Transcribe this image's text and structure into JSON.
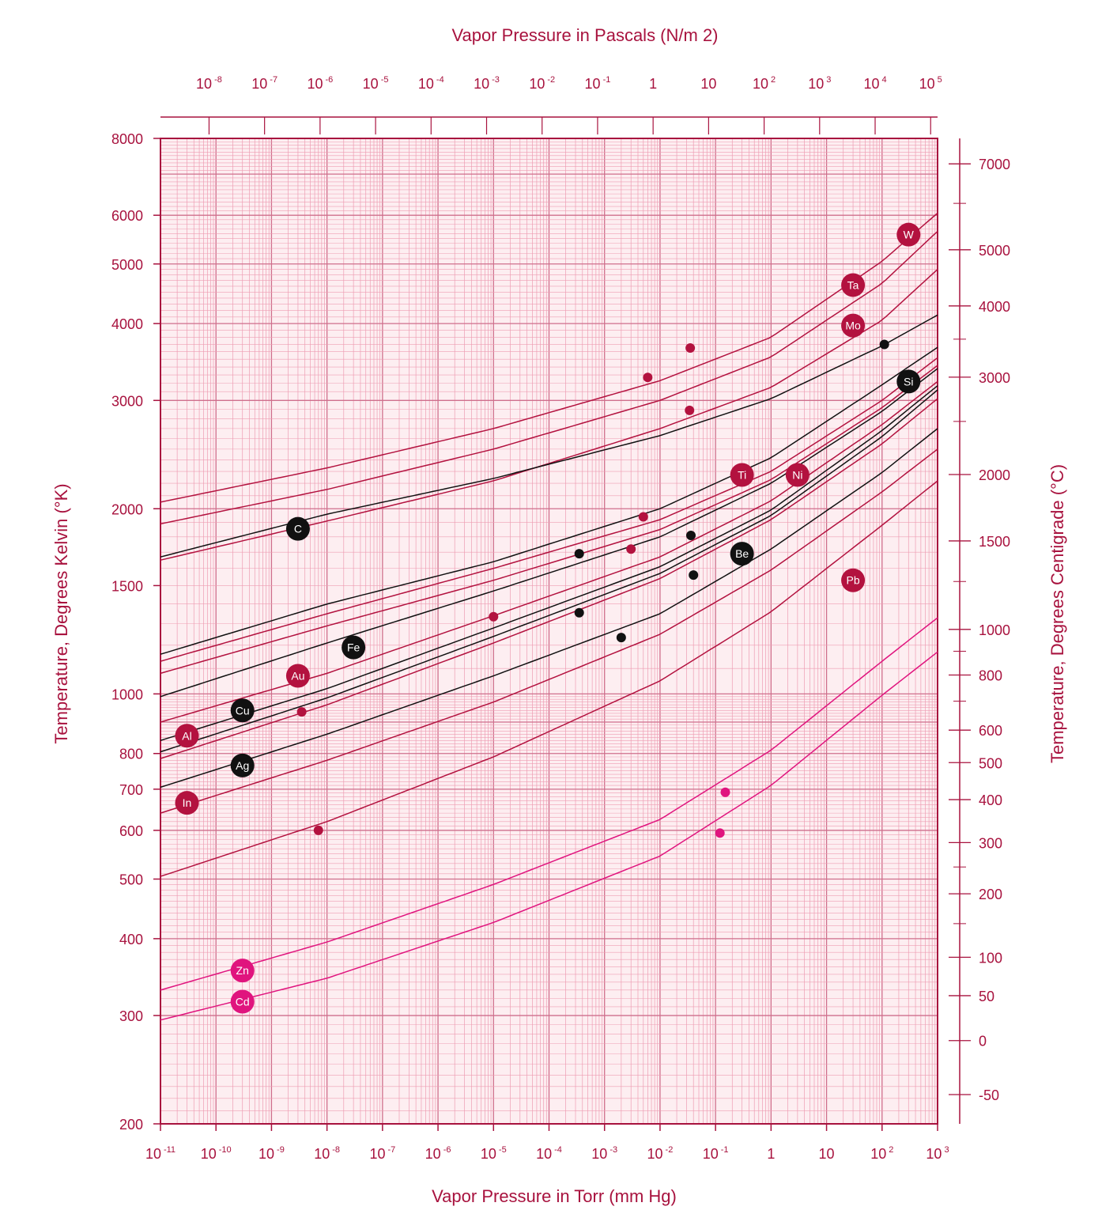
{
  "chart_data": {
    "type": "line",
    "title": "",
    "xlabel": "Vapor Pressure in Torr (mm Hg)",
    "x2label": "Vapor Pressure in Pascals (N/m 2)",
    "ylabel": "Temperature, Degrees Kelvin (°K)",
    "y2label": "Temperature, Degrees Centigrade (°C)",
    "x_scale": "log",
    "y_scale": "log",
    "xlim": [
      1e-11,
      1000
    ],
    "ylim": [
      200,
      8000
    ],
    "grid": true,
    "colors": {
      "primary": "#a8123e",
      "metal": "#b3123f",
      "black": "#111111",
      "magenta": "#e0147e",
      "grid_minor": "#ee9db3",
      "grid_major": "#cf6f8c",
      "plot_bg": "#fdeef1"
    },
    "x_ticks_torr": [
      {
        "base": "10",
        "exp": "-11"
      },
      {
        "base": "10",
        "exp": "-10"
      },
      {
        "base": "10",
        "exp": "-9"
      },
      {
        "base": "10",
        "exp": "-8"
      },
      {
        "base": "10",
        "exp": "-7"
      },
      {
        "base": "10",
        "exp": "-6"
      },
      {
        "base": "10",
        "exp": "-5"
      },
      {
        "base": "10",
        "exp": "-4"
      },
      {
        "base": "10",
        "exp": "-3"
      },
      {
        "base": "10",
        "exp": "-2"
      },
      {
        "base": "10",
        "exp": "-1"
      },
      {
        "base": "1",
        "exp": ""
      },
      {
        "base": "10",
        "exp": ""
      },
      {
        "base": "10",
        "exp": "2"
      },
      {
        "base": "10",
        "exp": "3"
      }
    ],
    "x_ticks_pascal": [
      {
        "base": "10",
        "exp": "-8"
      },
      {
        "base": "10",
        "exp": "-7"
      },
      {
        "base": "10",
        "exp": "-6"
      },
      {
        "base": "10",
        "exp": "-5"
      },
      {
        "base": "10",
        "exp": "-4"
      },
      {
        "base": "10",
        "exp": "-3"
      },
      {
        "base": "10",
        "exp": "-2"
      },
      {
        "base": "10",
        "exp": "-1"
      },
      {
        "base": "1",
        "exp": ""
      },
      {
        "base": "10",
        "exp": ""
      },
      {
        "base": "10",
        "exp": "2"
      },
      {
        "base": "10",
        "exp": "3"
      },
      {
        "base": "10",
        "exp": "4"
      },
      {
        "base": "10",
        "exp": "5"
      }
    ],
    "y_ticks_kelvin": [
      {
        "value": 8000,
        "label": "8000"
      },
      {
        "value": 6000,
        "label": "6000"
      },
      {
        "value": 5000,
        "label": "5000"
      },
      {
        "value": 4000,
        "label": "4000"
      },
      {
        "value": 3000,
        "label": "3000"
      },
      {
        "value": 2000,
        "label": "2000"
      },
      {
        "value": 1500,
        "label": "1500"
      },
      {
        "value": 1000,
        "label": "1000"
      },
      {
        "value": 800,
        "label": "800"
      },
      {
        "value": 700,
        "label": "700"
      },
      {
        "value": 600,
        "label": "600"
      },
      {
        "value": 500,
        "label": "500"
      },
      {
        "value": 400,
        "label": "400"
      },
      {
        "value": 300,
        "label": "300"
      },
      {
        "value": 200,
        "label": "200"
      }
    ],
    "y_ticks_celsius": [
      {
        "value": 7000,
        "label": "7000"
      },
      {
        "value": 5000,
        "label": "5000"
      },
      {
        "value": 4000,
        "label": "4000"
      },
      {
        "value": 3000,
        "label": "3000"
      },
      {
        "value": 2000,
        "label": "2000"
      },
      {
        "value": 1500,
        "label": "1500"
      },
      {
        "value": 1000,
        "label": "1000"
      },
      {
        "value": 800,
        "label": "800"
      },
      {
        "value": 600,
        "label": "600"
      },
      {
        "value": 500,
        "label": "500"
      },
      {
        "value": 400,
        "label": "400"
      },
      {
        "value": 300,
        "label": "300"
      },
      {
        "value": 200,
        "label": "200"
      },
      {
        "value": 100,
        "label": "100"
      },
      {
        "value": 50,
        "label": "50"
      },
      {
        "value": 0,
        "label": "0"
      },
      {
        "value": -50,
        "label": "-50"
      }
    ],
    "series": [
      {
        "name": "W",
        "color": "metal",
        "x": [
          1e-11,
          1e-08,
          1e-05,
          0.01,
          1,
          100,
          1000
        ],
        "y": [
          2050,
          2330,
          2700,
          3230,
          3800,
          5050,
          6050
        ],
        "label_at": [
          300,
          5580
        ]
      },
      {
        "name": "Ta",
        "color": "metal",
        "x": [
          1e-11,
          1e-08,
          1e-05,
          0.01,
          1,
          100,
          1000
        ],
        "y": [
          1890,
          2150,
          2500,
          3000,
          3530,
          4650,
          5650
        ],
        "label_at": [
          30,
          4620
        ]
      },
      {
        "name": "Mo",
        "color": "metal",
        "x": [
          1e-11,
          1e-08,
          1e-05,
          0.01,
          1,
          100,
          1000
        ],
        "y": [
          1650,
          1910,
          2220,
          2700,
          3150,
          4050,
          4900
        ],
        "label_at": [
          30,
          3970
        ]
      },
      {
        "name": "C",
        "color": "black",
        "x": [
          1e-11,
          1e-08,
          1e-05,
          0.01,
          1,
          100,
          1000
        ],
        "y": [
          1670,
          1960,
          2240,
          2630,
          3020,
          3680,
          4130
        ],
        "label_at": [
          3e-09,
          1855
        ]
      },
      {
        "name": "Si",
        "color": "black",
        "x": [
          1e-11,
          1e-08,
          1e-05,
          0.01,
          1,
          100,
          1000
        ],
        "y": [
          1160,
          1400,
          1640,
          2000,
          2420,
          3180,
          3660
        ],
        "label_at": [
          300,
          3220
        ]
      },
      {
        "name": "Ti",
        "color": "metal",
        "x": [
          1e-11,
          1e-08,
          1e-05,
          0.01,
          1,
          100,
          1000
        ],
        "y": [
          1130,
          1350,
          1600,
          1920,
          2300,
          3000,
          3520
        ],
        "label_at": [
          0.3,
          2270
        ]
      },
      {
        "name": "Ni",
        "color": "metal",
        "x": [
          1e-11,
          1e-08,
          1e-05,
          0.01,
          1,
          100,
          1000
        ],
        "y": [
          1080,
          1290,
          1530,
          1850,
          2230,
          2920,
          3420
        ],
        "label_at": [
          3,
          2270
        ]
      },
      {
        "name": "Fe",
        "color": "black",
        "x": [
          1e-11,
          1e-08,
          1e-05,
          0.01,
          1,
          100,
          1000
        ],
        "y": [
          990,
          1210,
          1470,
          1800,
          2200,
          2880,
          3380
        ],
        "label_at": [
          3e-08,
          1190
        ]
      },
      {
        "name": "Au",
        "color": "metal",
        "x": [
          1e-11,
          1e-08,
          1e-05,
          0.01,
          1,
          100,
          1000
        ],
        "y": [
          900,
          1080,
          1340,
          1670,
          2060,
          2740,
          3220
        ],
        "label_at": [
          3e-09,
          1070
        ]
      },
      {
        "name": "Be",
        "color": "black",
        "x": [
          1e-11,
          1e-08,
          1e-05,
          0.01,
          1,
          100,
          1000
        ],
        "y": [
          840,
          1020,
          1280,
          1610,
          1990,
          2680,
          3170
        ],
        "label_at": [
          0.3,
          1690
        ]
      },
      {
        "name": "Cu",
        "color": "black",
        "x": [
          1e-11,
          1e-08,
          1e-05,
          0.01,
          1,
          100,
          1000
        ],
        "y": [
          805,
          985,
          1240,
          1570,
          1950,
          2620,
          3120
        ],
        "label_at": [
          3e-10,
          940
        ]
      },
      {
        "name": "Al",
        "color": "metal",
        "x": [
          1e-11,
          1e-08,
          1e-05,
          0.01,
          1,
          100,
          1000
        ],
        "y": [
          785,
          960,
          1210,
          1540,
          1920,
          2550,
          3020
        ],
        "label_at": [
          3e-11,
          855
        ]
      },
      {
        "name": "Ag",
        "color": "black",
        "x": [
          1e-11,
          1e-08,
          1e-05,
          0.01,
          1,
          100,
          1000
        ],
        "y": [
          705,
          860,
          1070,
          1350,
          1720,
          2290,
          2700
        ],
        "label_at": [
          3e-10,
          765
        ]
      },
      {
        "name": "In",
        "color": "metal",
        "x": [
          1e-11,
          1e-08,
          1e-05,
          0.01,
          1,
          100,
          1000
        ],
        "y": [
          640,
          780,
          970,
          1250,
          1590,
          2130,
          2500
        ],
        "label_at": [
          3e-11,
          665
        ]
      },
      {
        "name": "Pb",
        "color": "metal",
        "x": [
          1e-11,
          1e-08,
          1e-05,
          0.01,
          1,
          100,
          1000
        ],
        "y": [
          505,
          620,
          790,
          1050,
          1360,
          1880,
          2220
        ],
        "label_at": [
          30,
          1530
        ]
      },
      {
        "name": "Zn",
        "color": "magenta",
        "x": [
          1e-11,
          1e-08,
          1e-05,
          0.01,
          1,
          100,
          1000
        ],
        "y": [
          330,
          395,
          490,
          625,
          810,
          1130,
          1330
        ],
        "label_at": [
          3e-10,
          355
        ]
      },
      {
        "name": "Cd",
        "color": "magenta",
        "x": [
          1e-11,
          1e-08,
          1e-05,
          0.01,
          1,
          100,
          1000
        ],
        "y": [
          295,
          345,
          425,
          545,
          710,
          995,
          1170
        ],
        "label_at": [
          3e-10,
          316
        ]
      }
    ],
    "melting_points": [
      {
        "x": 0.035,
        "y": 3650,
        "color": "metal"
      },
      {
        "x": 0.006,
        "y": 3270,
        "color": "metal"
      },
      {
        "x": 0.034,
        "y": 2890,
        "color": "metal"
      },
      {
        "x": 110,
        "y": 3700,
        "color": "black"
      },
      {
        "x": 0.005,
        "y": 1940,
        "color": "metal"
      },
      {
        "x": 0.003,
        "y": 1720,
        "color": "metal"
      },
      {
        "x": 0.00035,
        "y": 1690,
        "color": "black"
      },
      {
        "x": 0.036,
        "y": 1810,
        "color": "black"
      },
      {
        "x": 0.04,
        "y": 1560,
        "color": "black"
      },
      {
        "x": 1e-05,
        "y": 1335,
        "color": "metal"
      },
      {
        "x": 0.00035,
        "y": 1355,
        "color": "black"
      },
      {
        "x": 0.002,
        "y": 1235,
        "color": "black"
      },
      {
        "x": 3.5e-09,
        "y": 935,
        "color": "metal"
      },
      {
        "x": 7e-09,
        "y": 600,
        "color": "metal"
      },
      {
        "x": 0.15,
        "y": 692,
        "color": "magenta"
      },
      {
        "x": 0.12,
        "y": 594,
        "color": "magenta"
      }
    ]
  }
}
